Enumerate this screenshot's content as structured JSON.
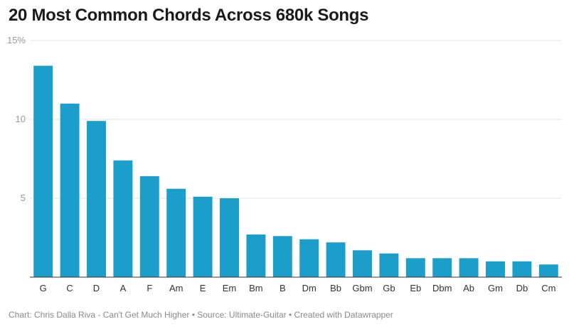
{
  "chart_data": {
    "type": "bar",
    "title": "20 Most Common Chords Across 680k Songs",
    "xlabel": "",
    "ylabel": "",
    "ylim": [
      0,
      15
    ],
    "yticks": [
      {
        "value": 15,
        "label": "15%"
      },
      {
        "value": 10,
        "label": "10"
      },
      {
        "value": 5,
        "label": "5"
      }
    ],
    "grid": true,
    "bar_color": "#1b9ec9",
    "categories": [
      "G",
      "C",
      "D",
      "A",
      "F",
      "Am",
      "E",
      "Em",
      "Bm",
      "B",
      "Dm",
      "Bb",
      "Gbm",
      "Gb",
      "Eb",
      "Dbm",
      "Ab",
      "Gm",
      "Db",
      "Cm"
    ],
    "values": [
      13.4,
      11.0,
      9.9,
      7.4,
      6.4,
      5.6,
      5.1,
      5.0,
      2.7,
      2.6,
      2.4,
      2.2,
      1.7,
      1.5,
      1.2,
      1.2,
      1.2,
      1.0,
      1.0,
      0.8
    ]
  },
  "footer": "Chart: Chris Dalla Riva - Can't Get Much Higher • Source: Ultimate-Guitar • Created with Datawrapper"
}
